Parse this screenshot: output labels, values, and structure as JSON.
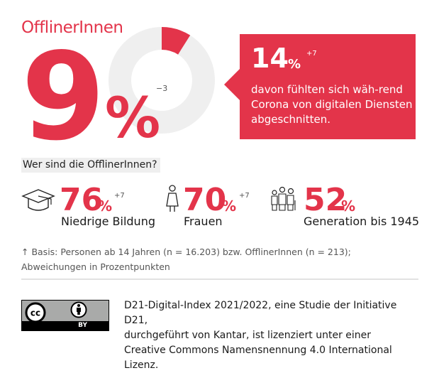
{
  "chart_data": {
    "type": "pie",
    "variant": "donut",
    "title": "OfflinerInnen",
    "slices": [
      {
        "label": "OfflinerInnen",
        "value": 9,
        "color": "#e3344a"
      },
      {
        "label": "Rest",
        "value": 91,
        "color": "#efefef"
      }
    ],
    "value_label": "9",
    "unit": "%",
    "change": "−3"
  },
  "title": "OfflinerInnen",
  "headline": {
    "value": "9",
    "unit": "%",
    "change": "−3"
  },
  "callout": {
    "value": "14",
    "unit": "%",
    "change": "+7",
    "text": "davon fühlten sich wäh-rend Corona von digitalen Diensten abgeschnitten."
  },
  "who_heading": "Wer sind die OfflinerInnen?",
  "stats": [
    {
      "icon": "graduation-cap-icon",
      "value": "76",
      "unit": "%",
      "change": "+7",
      "label": "Niedrige Bildung"
    },
    {
      "icon": "woman-icon",
      "value": "70",
      "unit": "%",
      "change": "+7",
      "label": "Frauen"
    },
    {
      "icon": "family-icon",
      "value": "52",
      "unit": "%",
      "change": "",
      "label": "Generation bis 1945"
    }
  ],
  "footnote": {
    "line1": "↑ Basis: Personen ab 14 Jahren (n = 16.203) bzw. OfflinerInnen (n = 213);",
    "line2": "Abweichungen in Prozentpunkten"
  },
  "license": {
    "badge_cc": "cc",
    "badge_by": "BY",
    "line1": "D21-Digital-Index 2021/2022, eine Studie der Initiative D21,",
    "line2": "durchgeführt von Kantar, ist lizenziert unter einer",
    "line3": "Creative Commons Namensnennung 4.0 International Lizenz."
  },
  "colors": {
    "accent": "#e3344a",
    "track": "#efefef"
  }
}
